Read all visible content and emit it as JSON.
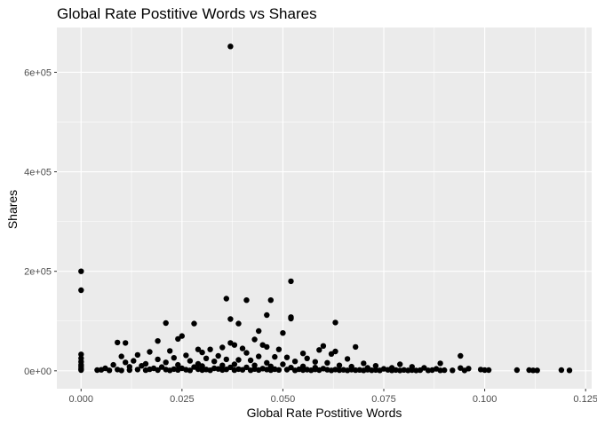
{
  "chart_data": {
    "type": "scatter",
    "title": "Global Rate Postitive Words vs Shares",
    "xlabel": "Global Rate Postitive Words",
    "ylabel": "Shares",
    "xlim": [
      -0.006,
      0.1265
    ],
    "ylim": [
      -36000,
      690000
    ],
    "x_ticks": [
      {
        "value": 0.0,
        "label": "0.000"
      },
      {
        "value": 0.025,
        "label": "0.025"
      },
      {
        "value": 0.05,
        "label": "0.050"
      },
      {
        "value": 0.075,
        "label": "0.075"
      },
      {
        "value": 0.1,
        "label": "0.100"
      },
      {
        "value": 0.125,
        "label": "0.125"
      }
    ],
    "y_ticks": [
      {
        "value": 0,
        "label": "0e+00"
      },
      {
        "value": 200000,
        "label": "2e+05"
      },
      {
        "value": 400000,
        "label": "4e+05"
      },
      {
        "value": 600000,
        "label": "6e+05"
      }
    ],
    "grid": true,
    "panel_color": "#ebebeb",
    "grid_color": "#ffffff",
    "point_color": "#000000",
    "points": [
      [
        0.037,
        652000
      ],
      [
        0.0,
        200000
      ],
      [
        0.0,
        162000
      ],
      [
        0.0,
        33000
      ],
      [
        0.0,
        25000
      ],
      [
        0.0,
        18000
      ],
      [
        0.0,
        12000
      ],
      [
        0.0,
        8000
      ],
      [
        0.0,
        4000
      ],
      [
        0.0,
        1500
      ],
      [
        0.052,
        180000
      ],
      [
        0.036,
        145000
      ],
      [
        0.041,
        142000
      ],
      [
        0.047,
        142000
      ],
      [
        0.046,
        112000
      ],
      [
        0.052,
        108000
      ],
      [
        0.052,
        105000
      ],
      [
        0.037,
        104000
      ],
      [
        0.063,
        97000
      ],
      [
        0.021,
        96000
      ],
      [
        0.028,
        95000
      ],
      [
        0.039,
        95000
      ],
      [
        0.044,
        80000
      ],
      [
        0.05,
        76000
      ],
      [
        0.025,
        70000
      ],
      [
        0.024,
        64000
      ],
      [
        0.043,
        63000
      ],
      [
        0.019,
        60000
      ],
      [
        0.009,
        57000
      ],
      [
        0.011,
        56000
      ],
      [
        0.037,
        56000
      ],
      [
        0.038,
        52000
      ],
      [
        0.045,
        52000
      ],
      [
        0.06,
        50000
      ],
      [
        0.046,
        48000
      ],
      [
        0.068,
        48000
      ],
      [
        0.035,
        47000
      ],
      [
        0.04,
        45000
      ],
      [
        0.029,
        43000
      ],
      [
        0.032,
        43000
      ],
      [
        0.049,
        43000
      ],
      [
        0.059,
        42000
      ],
      [
        0.022,
        40000
      ],
      [
        0.063,
        39000
      ],
      [
        0.017,
        38000
      ],
      [
        0.03,
        37000
      ],
      [
        0.041,
        36000
      ],
      [
        0.055,
        35000
      ],
      [
        0.062,
        34000
      ],
      [
        0.014,
        32000
      ],
      [
        0.026,
        31000
      ],
      [
        0.034,
        30000
      ],
      [
        0.094,
        30000
      ],
      [
        0.01,
        29000
      ],
      [
        0.044,
        29000
      ],
      [
        0.048,
        28000
      ],
      [
        0.051,
        27000
      ],
      [
        0.023,
        26000
      ],
      [
        0.031,
        25000
      ],
      [
        0.056,
        25000
      ],
      [
        0.066,
        24000
      ],
      [
        0.019,
        23000
      ],
      [
        0.036,
        23000
      ],
      [
        0.039,
        22000
      ],
      [
        0.042,
        21000
      ],
      [
        0.013,
        20000
      ],
      [
        0.027,
        20000
      ],
      [
        0.033,
        19000
      ],
      [
        0.053,
        19000
      ],
      [
        0.058,
        18000
      ],
      [
        0.011,
        17000
      ],
      [
        0.021,
        17000
      ],
      [
        0.046,
        16000
      ],
      [
        0.061,
        16000
      ],
      [
        0.07,
        15000
      ],
      [
        0.089,
        15000
      ],
      [
        0.016,
        14000
      ],
      [
        0.029,
        14000
      ],
      [
        0.038,
        13000
      ],
      [
        0.05,
        13000
      ],
      [
        0.079,
        13000
      ],
      [
        0.008,
        12000
      ],
      [
        0.024,
        12000
      ],
      [
        0.035,
        11000
      ],
      [
        0.043,
        11000
      ],
      [
        0.064,
        11000
      ],
      [
        0.073,
        10000
      ],
      [
        0.015,
        10000
      ],
      [
        0.03,
        9500
      ],
      [
        0.047,
        9000
      ],
      [
        0.055,
        9000
      ],
      [
        0.067,
        8500
      ],
      [
        0.082,
        8000
      ],
      [
        0.012,
        8000
      ],
      [
        0.02,
        7500
      ],
      [
        0.028,
        7500
      ],
      [
        0.037,
        7000
      ],
      [
        0.041,
        7000
      ],
      [
        0.052,
        6500
      ],
      [
        0.058,
        6500
      ],
      [
        0.071,
        6000
      ],
      [
        0.077,
        6000
      ],
      [
        0.085,
        6000
      ],
      [
        0.094,
        5500
      ],
      [
        0.096,
        4500
      ],
      [
        0.006,
        5000
      ],
      [
        0.018,
        5000
      ],
      [
        0.025,
        5000
      ],
      [
        0.033,
        5000
      ],
      [
        0.045,
        4500
      ],
      [
        0.06,
        4500
      ],
      [
        0.075,
        4000
      ],
      [
        0.088,
        4000
      ],
      [
        0.099,
        2500
      ],
      [
        0.1,
        1500
      ],
      [
        0.101,
        1500
      ],
      [
        0.108,
        1500
      ],
      [
        0.111,
        1500
      ],
      [
        0.112,
        1000
      ],
      [
        0.113,
        1000
      ],
      [
        0.119,
        1500
      ],
      [
        0.121,
        1000
      ],
      [
        0.004,
        1500
      ],
      [
        0.005,
        2000
      ],
      [
        0.007,
        1000
      ],
      [
        0.009,
        2500
      ],
      [
        0.01,
        800
      ],
      [
        0.012,
        1500
      ],
      [
        0.014,
        2500
      ],
      [
        0.016,
        1200
      ],
      [
        0.017,
        3000
      ],
      [
        0.019,
        1500
      ],
      [
        0.021,
        2500
      ],
      [
        0.022,
        1000
      ],
      [
        0.023,
        3500
      ],
      [
        0.024,
        1800
      ],
      [
        0.026,
        2200
      ],
      [
        0.027,
        900
      ],
      [
        0.029,
        3200
      ],
      [
        0.03,
        1400
      ],
      [
        0.031,
        2700
      ],
      [
        0.032,
        1100
      ],
      [
        0.034,
        3800
      ],
      [
        0.035,
        1600
      ],
      [
        0.036,
        2900
      ],
      [
        0.038,
        1300
      ],
      [
        0.039,
        3400
      ],
      [
        0.04,
        2000
      ],
      [
        0.042,
        1100
      ],
      [
        0.043,
        3600
      ],
      [
        0.044,
        1700
      ],
      [
        0.046,
        2600
      ],
      [
        0.047,
        1200
      ],
      [
        0.048,
        3300
      ],
      [
        0.049,
        1900
      ],
      [
        0.051,
        2400
      ],
      [
        0.053,
        1000
      ],
      [
        0.054,
        3000
      ],
      [
        0.055,
        1500
      ],
      [
        0.056,
        2300
      ],
      [
        0.057,
        1100
      ],
      [
        0.058,
        2800
      ],
      [
        0.059,
        1400
      ],
      [
        0.061,
        2100
      ],
      [
        0.062,
        1000
      ],
      [
        0.063,
        2600
      ],
      [
        0.064,
        1200
      ],
      [
        0.065,
        2000
      ],
      [
        0.066,
        1000
      ],
      [
        0.067,
        2400
      ],
      [
        0.068,
        1300
      ],
      [
        0.069,
        1800
      ],
      [
        0.07,
        1000
      ],
      [
        0.071,
        2200
      ],
      [
        0.072,
        1100
      ],
      [
        0.073,
        1700
      ],
      [
        0.074,
        900
      ],
      [
        0.076,
        2000
      ],
      [
        0.077,
        1000
      ],
      [
        0.078,
        1600
      ],
      [
        0.079,
        800
      ],
      [
        0.08,
        1800
      ],
      [
        0.081,
        900
      ],
      [
        0.082,
        1500
      ],
      [
        0.083,
        800
      ],
      [
        0.084,
        1300
      ],
      [
        0.086,
        1000
      ],
      [
        0.087,
        1400
      ],
      [
        0.089,
        900
      ],
      [
        0.09,
        1200
      ],
      [
        0.092,
        1000
      ],
      [
        0.095,
        800
      ]
    ]
  }
}
